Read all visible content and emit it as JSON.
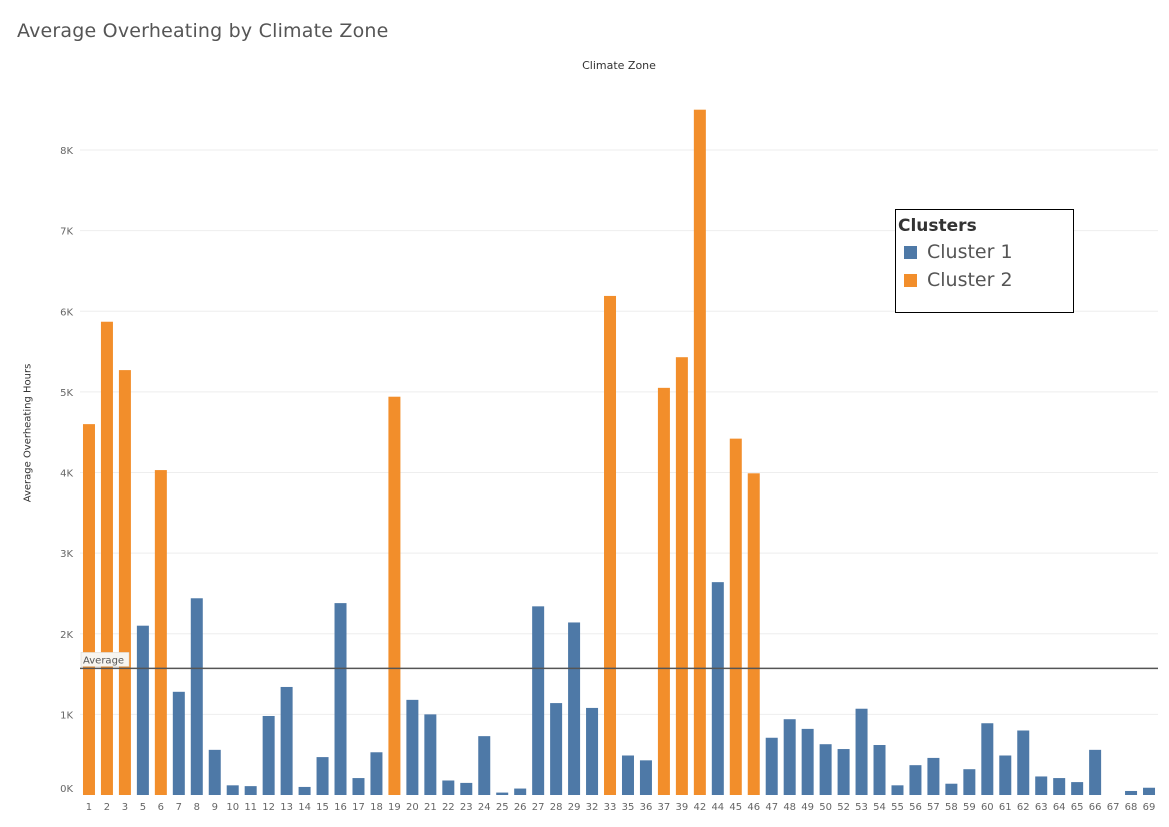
{
  "chart_data": {
    "type": "bar",
    "title": "Average Overheating by Climate Zone",
    "column_header": "Climate Zone",
    "xlabel": "",
    "ylabel": "Average Overheating Hours",
    "ylim": [
      0,
      8650
    ],
    "yticks": [
      {
        "value": 0,
        "label": "0K"
      },
      {
        "value": 1000,
        "label": "1K"
      },
      {
        "value": 2000,
        "label": "2K"
      },
      {
        "value": 3000,
        "label": "3K"
      },
      {
        "value": 4000,
        "label": "4K"
      },
      {
        "value": 5000,
        "label": "5K"
      },
      {
        "value": 6000,
        "label": "6K"
      },
      {
        "value": 7000,
        "label": "7K"
      },
      {
        "value": 8000,
        "label": "8K"
      }
    ],
    "grid": true,
    "reference_line": {
      "label": "Average",
      "value": 1570
    },
    "legend": {
      "title": "Clusters",
      "position": "top-right",
      "items": [
        {
          "name": "Cluster 1",
          "color": "#4e79a7"
        },
        {
          "name": "Cluster 2",
          "color": "#f28e2b"
        }
      ]
    },
    "categories": [
      "1",
      "2",
      "3",
      "5",
      "6",
      "7",
      "8",
      "9",
      "10",
      "11",
      "12",
      "13",
      "14",
      "15",
      "16",
      "17",
      "18",
      "19",
      "20",
      "21",
      "22",
      "23",
      "24",
      "25",
      "26",
      "27",
      "28",
      "29",
      "32",
      "33",
      "35",
      "36",
      "37",
      "39",
      "42",
      "44",
      "45",
      "46",
      "47",
      "48",
      "49",
      "50",
      "52",
      "53",
      "54",
      "55",
      "56",
      "57",
      "58",
      "59",
      "60",
      "61",
      "62",
      "63",
      "64",
      "65",
      "66",
      "67",
      "68",
      "69"
    ],
    "values": [
      4600,
      5870,
      5270,
      2100,
      4030,
      1280,
      2440,
      560,
      120,
      110,
      980,
      1340,
      100,
      470,
      2380,
      210,
      530,
      4940,
      1180,
      1000,
      180,
      150,
      730,
      30,
      80,
      2340,
      1140,
      2140,
      1080,
      6190,
      490,
      430,
      5050,
      5430,
      8500,
      2640,
      4420,
      3990,
      710,
      940,
      820,
      630,
      570,
      1070,
      620,
      120,
      370,
      460,
      140,
      320,
      890,
      490,
      800,
      230,
      210,
      160,
      560,
      0,
      50,
      90
    ],
    "clusters": [
      2,
      2,
      2,
      1,
      2,
      1,
      1,
      1,
      1,
      1,
      1,
      1,
      1,
      1,
      1,
      1,
      1,
      2,
      1,
      1,
      1,
      1,
      1,
      1,
      1,
      1,
      1,
      1,
      1,
      2,
      1,
      1,
      2,
      2,
      2,
      1,
      2,
      2,
      1,
      1,
      1,
      1,
      1,
      1,
      1,
      1,
      1,
      1,
      1,
      1,
      1,
      1,
      1,
      1,
      1,
      1,
      1,
      1,
      1,
      1
    ]
  }
}
